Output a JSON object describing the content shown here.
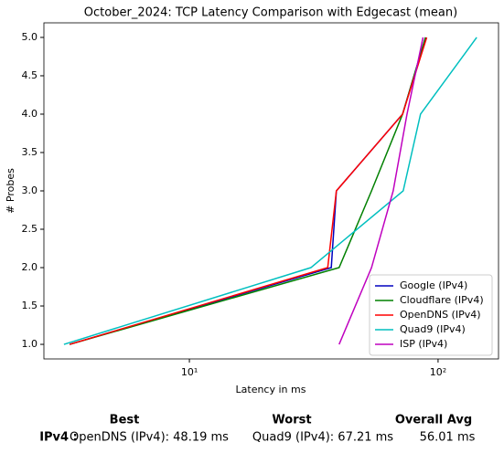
{
  "chart_data": {
    "type": "line",
    "title": "October_2024: TCP Latency Comparison with Edgecast (mean)",
    "x_label": "Latency in ms",
    "y_label": "# Probes",
    "xscale": "log",
    "xlim": [
      2.6,
      175
    ],
    "xticks": [
      {
        "value": 10,
        "label": "10¹"
      },
      {
        "value": 100,
        "label": "10²"
      }
    ],
    "ylim": [
      0.81,
      5.19
    ],
    "yticks": [
      {
        "value": 1,
        "label": "1.0"
      },
      {
        "value": 1.5,
        "label": "1.5"
      },
      {
        "value": 2,
        "label": "2.0"
      },
      {
        "value": 2.5,
        "label": "2.5"
      },
      {
        "value": 3,
        "label": "3.0"
      },
      {
        "value": 3.5,
        "label": "3.5"
      },
      {
        "value": 4,
        "label": "4.0"
      },
      {
        "value": 4.5,
        "label": "4.5"
      },
      {
        "value": 5,
        "label": "5.0"
      }
    ],
    "legend": "lower right",
    "series": [
      {
        "name": "Google (IPv4)",
        "color": "#0000bf",
        "x": [
          3.3,
          37.2,
          39,
          72,
          89
        ],
        "values": [
          1,
          2,
          3,
          4,
          5
        ]
      },
      {
        "name": "Cloudflare (IPv4)",
        "color": "#008000",
        "x": [
          3.3,
          40,
          54,
          72,
          89
        ],
        "values": [
          1,
          2,
          3,
          4,
          5
        ]
      },
      {
        "name": "OpenDNS (IPv4)",
        "color": "#ff0000",
        "x": [
          3.3,
          36,
          39,
          72,
          90
        ],
        "values": [
          1,
          2,
          3,
          4,
          5
        ]
      },
      {
        "name": "Quad9 (IPv4)",
        "color": "#00bfbf",
        "x": [
          3.13,
          30.8,
          72.4,
          85,
          143
        ],
        "values": [
          1,
          2,
          3,
          4,
          5
        ]
      },
      {
        "name": "ISP (IPv4)",
        "color": "#bf00bf",
        "x": [
          40,
          54,
          66,
          75,
          87
        ],
        "values": [
          1,
          2,
          3,
          4,
          5
        ]
      }
    ]
  },
  "summary": {
    "headers": [
      "Best",
      "Worst",
      "Overall Avg"
    ],
    "row": {
      "label": "IPv4 :",
      "best": "OpenDNS (IPv4): 48.19 ms",
      "worst": "Quad9 (IPv4): 67.21 ms",
      "avg": "56.01 ms"
    }
  }
}
